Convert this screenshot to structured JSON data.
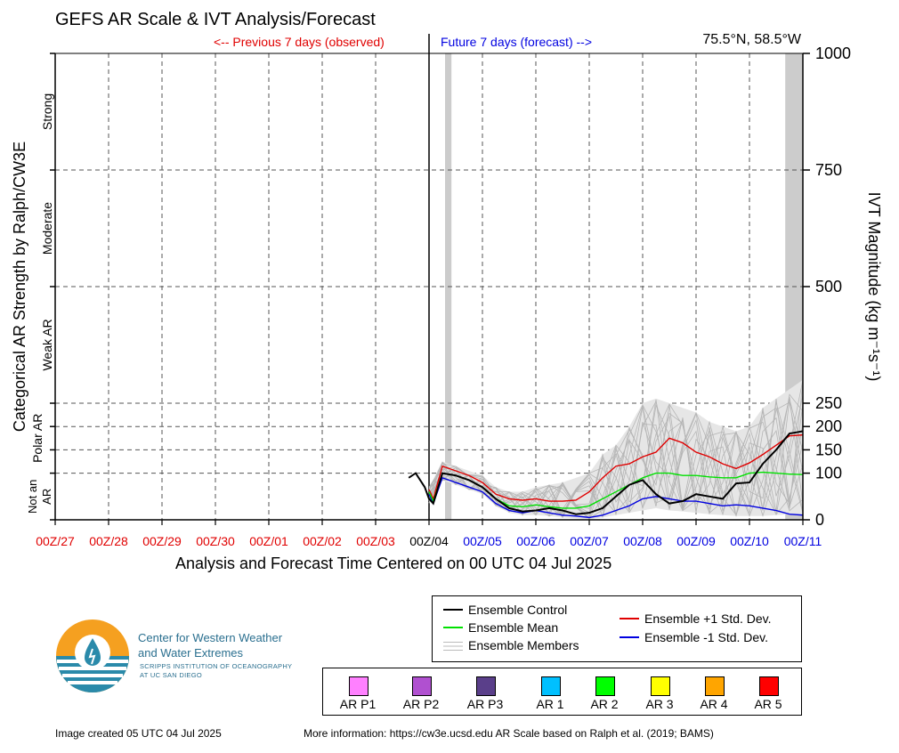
{
  "header": {
    "title": "GEFS AR Scale & IVT Analysis/Forecast",
    "location": "75.5°N, 58.5°W",
    "previous_label": "<-- Previous 7 days (observed)",
    "future_label": "Future 7 days (forecast) -->"
  },
  "chart_data": {
    "type": "line",
    "xlabel": "Analysis and Forecast Time Centered on 00 UTC 04 Jul 2025",
    "ylabel_left": "Categorical AR Strength by Ralph/CW3E",
    "ylabel_right": "IVT Magnitude (kg m⁻¹s⁻¹)",
    "ylim": [
      0,
      1000
    ],
    "y_ticks": [
      0,
      100,
      150,
      200,
      250,
      500,
      750,
      1000
    ],
    "x_range_days": [
      -7,
      7
    ],
    "x_tick_labels": [
      "00Z/27",
      "00Z/28",
      "00Z/29",
      "00Z/30",
      "00Z/01",
      "00Z/02",
      "00Z/03",
      "00Z/04",
      "00Z/05",
      "00Z/06",
      "00Z/07",
      "00Z/08",
      "00Z/09",
      "00Z/10",
      "00Z/11"
    ],
    "x_tick_colors": [
      "#e00000",
      "#e00000",
      "#e00000",
      "#e00000",
      "#e00000",
      "#e00000",
      "#e00000",
      "#000000",
      "#0000e0",
      "#0000e0",
      "#0000e0",
      "#0000e0",
      "#0000e0",
      "#0000e0",
      "#0000e0"
    ],
    "categories": [
      {
        "label": "Not an AR",
        "range": [
          0,
          100
        ]
      },
      {
        "label": "Polar AR",
        "range": [
          100,
          250
        ]
      },
      {
        "label": "Weak AR",
        "range": [
          250,
          500
        ]
      },
      {
        "label": "Moderate",
        "range": [
          500,
          750
        ]
      },
      {
        "label": "Strong",
        "range": [
          750,
          1000
        ]
      }
    ],
    "shaded_periods": [
      {
        "start": 0.3,
        "end": 0.42
      },
      {
        "start": 6.67,
        "end": 7.0
      }
    ],
    "series": [
      {
        "name": "Ensemble Control",
        "color": "#000000",
        "x": [
          -0.38,
          -0.25,
          -0.08,
          0.0,
          0.08,
          0.25,
          0.5,
          0.75,
          1.0,
          1.25,
          1.5,
          1.75,
          2.0,
          2.25,
          2.5,
          2.75,
          3.0,
          3.25,
          3.5,
          3.75,
          4.0,
          4.25,
          4.5,
          4.75,
          5.0,
          5.25,
          5.5,
          5.75,
          6.0,
          6.25,
          6.5,
          6.75,
          7.0
        ],
        "y": [
          90,
          100,
          70,
          45,
          35,
          100,
          95,
          85,
          70,
          45,
          25,
          18,
          20,
          25,
          20,
          12,
          15,
          25,
          50,
          75,
          85,
          55,
          35,
          40,
          55,
          50,
          45,
          78,
          80,
          120,
          150,
          185,
          190
        ]
      },
      {
        "name": "Ensemble Mean",
        "color": "#00e000",
        "x": [
          0.0,
          0.08,
          0.25,
          0.5,
          0.75,
          1.0,
          1.25,
          1.5,
          1.75,
          2.0,
          2.25,
          2.5,
          2.75,
          3.0,
          3.25,
          3.5,
          3.75,
          4.0,
          4.25,
          4.5,
          4.75,
          5.0,
          5.25,
          5.5,
          5.75,
          6.0,
          6.25,
          6.5,
          6.75,
          7.0
        ],
        "y": [
          60,
          40,
          100,
          95,
          85,
          70,
          45,
          30,
          28,
          32,
          28,
          25,
          25,
          30,
          45,
          60,
          75,
          90,
          100,
          100,
          95,
          95,
          92,
          90,
          90,
          100,
          102,
          100,
          98,
          97
        ]
      },
      {
        "name": "Ensemble +1 Std. Dev.",
        "color": "#e00000",
        "x": [
          0.0,
          0.08,
          0.25,
          0.5,
          0.75,
          1.0,
          1.25,
          1.5,
          1.75,
          2.0,
          2.25,
          2.5,
          2.75,
          3.0,
          3.25,
          3.5,
          3.75,
          4.0,
          4.25,
          4.5,
          4.75,
          5.0,
          5.25,
          5.5,
          5.75,
          6.0,
          6.25,
          6.5,
          6.75,
          7.0
        ],
        "y": [
          65,
          45,
          115,
          105,
          95,
          80,
          55,
          45,
          42,
          45,
          40,
          40,
          42,
          60,
          90,
          115,
          120,
          135,
          145,
          175,
          165,
          145,
          135,
          120,
          110,
          122,
          140,
          160,
          180,
          182
        ]
      },
      {
        "name": "Ensemble -1 Std. Dev.",
        "color": "#0000e0",
        "x": [
          0.0,
          0.08,
          0.25,
          0.5,
          0.75,
          1.0,
          1.25,
          1.5,
          1.75,
          2.0,
          2.25,
          2.5,
          2.75,
          3.0,
          3.25,
          3.5,
          3.75,
          4.0,
          4.25,
          4.5,
          4.75,
          5.0,
          5.25,
          5.5,
          5.75,
          6.0,
          6.25,
          6.5,
          6.75,
          7.0
        ],
        "y": [
          55,
          35,
          90,
          80,
          70,
          60,
          35,
          20,
          15,
          20,
          15,
          10,
          8,
          5,
          10,
          20,
          30,
          45,
          50,
          45,
          40,
          40,
          35,
          30,
          32,
          30,
          25,
          20,
          12,
          10
        ]
      },
      {
        "name": "Ensemble Members",
        "color": "#bbbbbb",
        "x": [
          0.0,
          0.25,
          0.5,
          0.75,
          1.0,
          1.25,
          1.5,
          1.75,
          2.0,
          2.25,
          2.5,
          2.75,
          3.0,
          3.25,
          3.5,
          3.75,
          4.0,
          4.25,
          4.5,
          4.75,
          5.0,
          5.25,
          5.5,
          5.75,
          6.0,
          6.25,
          6.5,
          6.75,
          7.0
        ],
        "y_min": [
          35,
          85,
          75,
          65,
          55,
          30,
          15,
          10,
          10,
          8,
          5,
          3,
          2,
          5,
          10,
          15,
          20,
          25,
          20,
          18,
          15,
          12,
          10,
          8,
          8,
          8,
          10,
          12,
          10
        ],
        "y_max": [
          70,
          125,
          115,
          105,
          95,
          70,
          60,
          60,
          70,
          75,
          80,
          90,
          100,
          140,
          160,
          200,
          250,
          260,
          250,
          240,
          230,
          210,
          200,
          190,
          200,
          240,
          260,
          280,
          300
        ]
      }
    ]
  },
  "legend": {
    "items": [
      "Ensemble Control",
      "Ensemble Mean",
      "Ensemble Members",
      "Ensemble +1 Std. Dev.",
      "Ensemble -1 Std. Dev."
    ]
  },
  "ar_scale": [
    {
      "label": "AR P1",
      "color": "#ff80ff"
    },
    {
      "label": "AR P2",
      "color": "#b050d0"
    },
    {
      "label": "AR P3",
      "color": "#5a3f8a"
    },
    {
      "label": "AR 1",
      "color": "#00c0ff"
    },
    {
      "label": "AR 2",
      "color": "#00ff00"
    },
    {
      "label": "AR 3",
      "color": "#ffff00"
    },
    {
      "label": "AR 4",
      "color": "#ffa500"
    },
    {
      "label": "AR 5",
      "color": "#ff0000"
    }
  ],
  "organization": {
    "name_line1": "Center for Western Weather",
    "name_line2": "and Water Extremes",
    "sub_line1": "SCRIPPS INSTITUTION OF OCEANOGRAPHY",
    "sub_line2": "AT UC SAN DIEGO"
  },
  "footer": {
    "created": "Image created 05 UTC 04 Jul 2025",
    "info": "More information: https://cw3e.ucsd.edu AR Scale based on Ralph et al. (2019; BAMS)"
  }
}
